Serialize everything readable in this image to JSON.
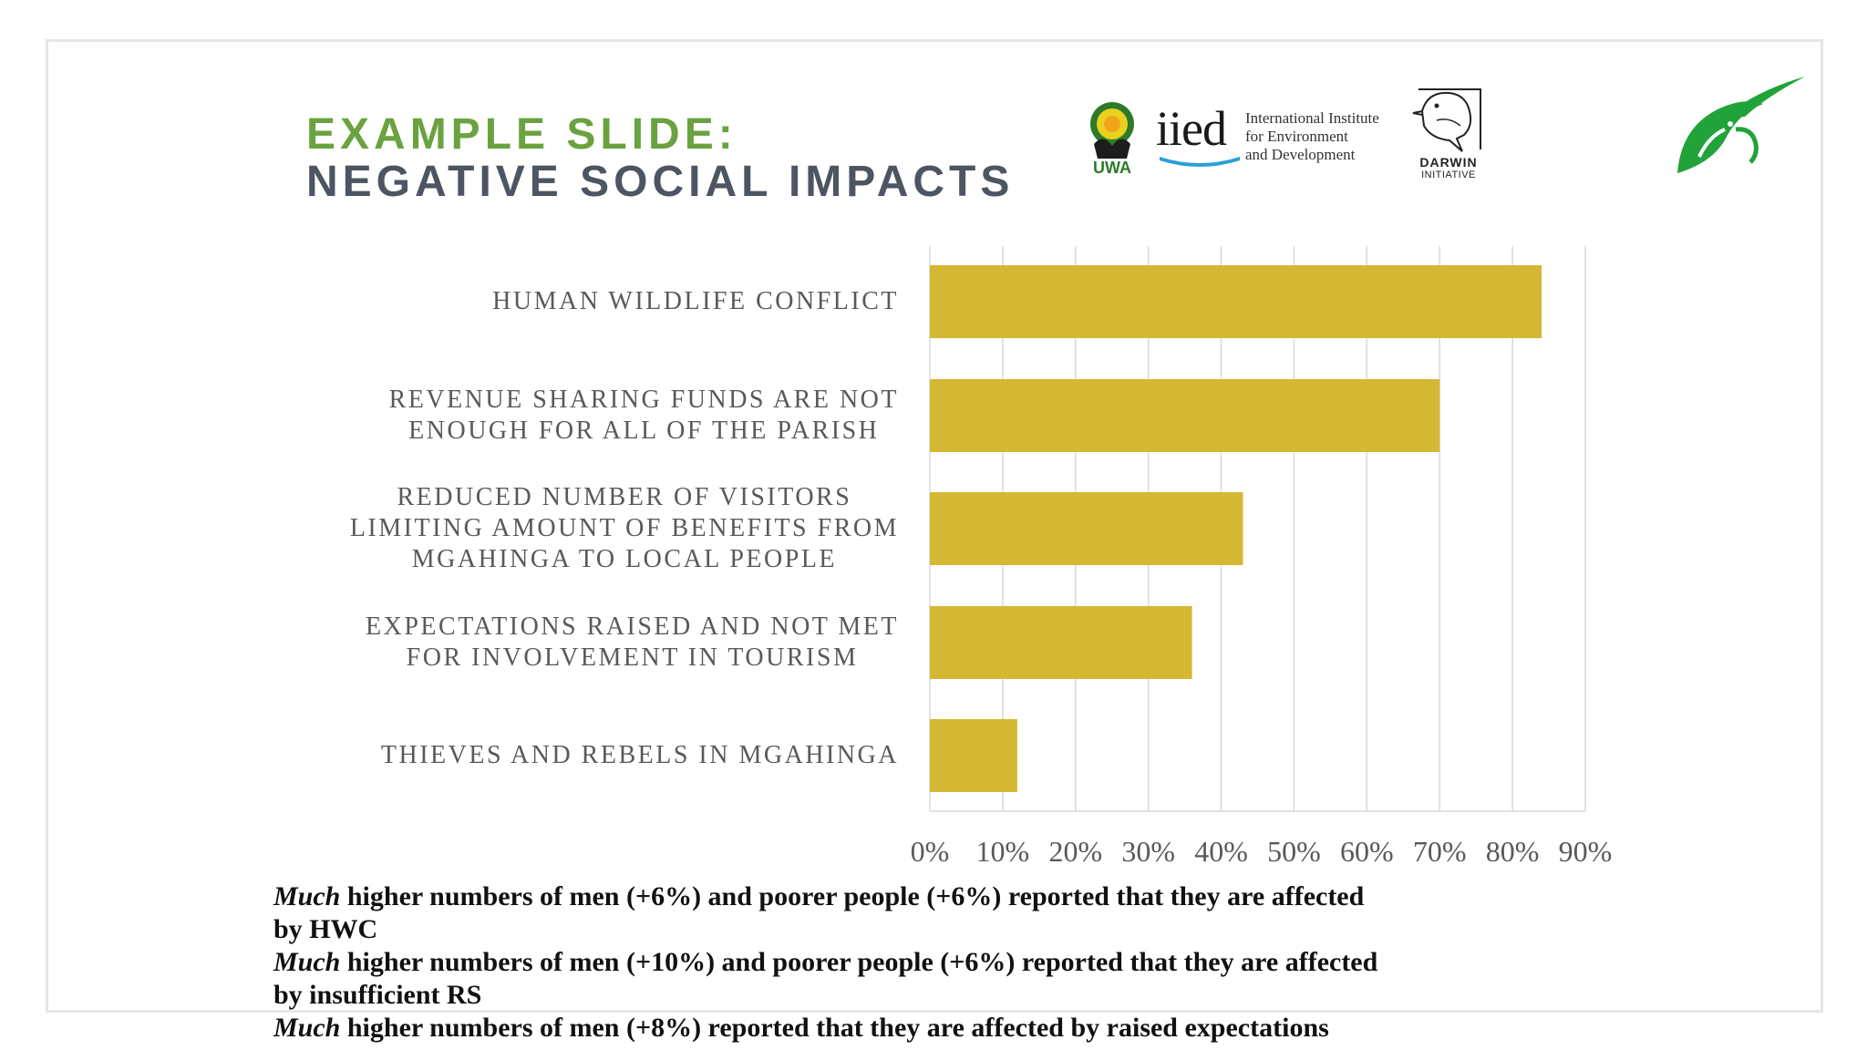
{
  "title": {
    "line1": "EXAMPLE SLIDE:",
    "line2": "NEGATIVE SOCIAL IMPACTS"
  },
  "logos": {
    "uwa": {
      "text": "UWA",
      "icon": "uwa-emblem-icon"
    },
    "iied": {
      "word": "iied",
      "lines": [
        "International Institute",
        "for Environment",
        "and Development"
      ],
      "icon": "iied-wave-icon"
    },
    "darwin": {
      "line1": "DARWIN",
      "line2": "INITIATIVE",
      "icon": "darwin-bird-icon"
    },
    "leaf": {
      "icon": "green-leaf-bird-icon"
    }
  },
  "colors": {
    "bar": "#d4b733",
    "title_green": "#6aa240",
    "title_grey": "#4d5562",
    "grid": "#d9d9d9",
    "label": "#595959",
    "logo_green": "#22a33a"
  },
  "chart_data": {
    "type": "bar",
    "orientation": "horizontal",
    "categories": [
      [
        "HUMAN WILDLIFE CONFLICT"
      ],
      [
        "REVENUE SHARING FUNDS ARE NOT",
        "ENOUGH FOR ALL OF THE PARISH"
      ],
      [
        "REDUCED NUMBER OF VISITORS",
        "LIMITING AMOUNT OF BENEFITS FROM",
        "MGAHINGA TO LOCAL PEOPLE"
      ],
      [
        "EXPECTATIONS RAISED AND NOT MET",
        "FOR INVOLVEMENT IN TOURISM"
      ],
      [
        "THIEVES AND REBELS IN MGAHINGA"
      ]
    ],
    "values": [
      84,
      70,
      43,
      36,
      12
    ],
    "xlim": [
      0,
      90
    ],
    "xticks": [
      0,
      10,
      20,
      30,
      40,
      50,
      60,
      70,
      80,
      90
    ],
    "tick_labels": [
      "0%",
      "10%",
      "20%",
      "30%",
      "40%",
      "50%",
      "60%",
      "70%",
      "80%",
      "90%"
    ],
    "grid": true,
    "legend": "none"
  },
  "notes": [
    {
      "em": "Much",
      "rest": " higher numbers of men (+6%)  and poorer people (+6%) reported that they are affected"
    },
    {
      "em": "",
      "rest": "by HWC"
    },
    {
      "em": "Much",
      "rest": " higher numbers of men (+10%) and poorer people (+6%) reported that they are affected"
    },
    {
      "em": "",
      "rest": "by insufficient RS"
    },
    {
      "em": "Much",
      "rest": " higher numbers of men (+8%) reported that they are affected by raised expectations"
    }
  ]
}
